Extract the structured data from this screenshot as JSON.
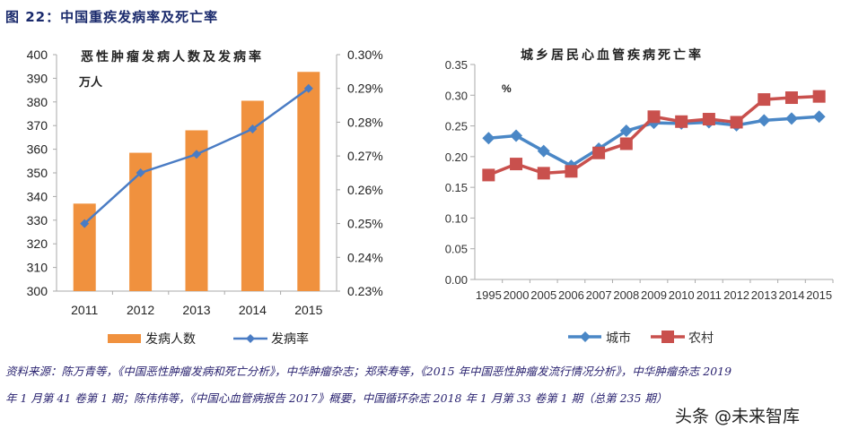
{
  "header": {
    "title": "图 22：中国重疾发病率及死亡率"
  },
  "chart_data": [
    {
      "type": "bar+line",
      "title": "恶性肿瘤发病人数及发病率",
      "unit": "万人",
      "categories": [
        "2011",
        "2012",
        "2013",
        "2014",
        "2015"
      ],
      "series": [
        {
          "name": "发病人数",
          "type": "bar",
          "axis": "left",
          "color": "#f0913e",
          "values": [
            337,
            358.5,
            368,
            380.5,
            392.7
          ]
        },
        {
          "name": "发病率",
          "type": "line",
          "axis": "right",
          "color": "#4a7cc4",
          "values": [
            0.25,
            0.265,
            0.2705,
            0.278,
            0.29
          ]
        }
      ],
      "ylim_left": [
        300,
        400
      ],
      "yticks_left": [
        "300",
        "310",
        "320",
        "330",
        "340",
        "350",
        "360",
        "370",
        "380",
        "390",
        "400"
      ],
      "ylim_right": [
        0.23,
        0.3
      ],
      "yticks_right": [
        "0.23%",
        "0.24%",
        "0.25%",
        "0.26%",
        "0.27%",
        "0.28%",
        "0.29%",
        "0.30%"
      ],
      "legend": "bottom",
      "grid": false
    },
    {
      "type": "line",
      "title": "城乡居民心血管疾病死亡率",
      "unit": "%",
      "categories": [
        "1995",
        "2000",
        "2005",
        "2006",
        "2007",
        "2008",
        "2009",
        "2010",
        "2011",
        "2012",
        "2013",
        "2014",
        "2015"
      ],
      "series": [
        {
          "name": "城市",
          "color": "#4a87c6",
          "marker": "diamond",
          "values": [
            0.23,
            0.234,
            0.209,
            0.185,
            0.213,
            0.242,
            0.255,
            0.254,
            0.256,
            0.251,
            0.259,
            0.262,
            0.265
          ]
        },
        {
          "name": "农村",
          "color": "#c9504d",
          "marker": "square",
          "values": [
            0.17,
            0.188,
            0.173,
            0.176,
            0.206,
            0.221,
            0.265,
            0.257,
            0.261,
            0.256,
            0.293,
            0.296,
            0.298
          ]
        }
      ],
      "ylim": [
        0,
        0.35
      ],
      "yticks": [
        "0.00",
        "0.05",
        "0.10",
        "0.15",
        "0.20",
        "0.25",
        "0.30",
        "0.35"
      ],
      "legend": "bottom",
      "grid": false
    }
  ],
  "footer": {
    "source": "资料来源：陈万青等，《中国恶性肿瘤发病和死亡分析》，中华肿瘤杂志；郑荣寿等，《2015 年中国恶性肿瘤发流行情况分析》，中华肿瘤杂志 2019 年 1 月第 41 卷第 1 期；陈伟伟等，《中国心血管病报告 2017》概要，中国循环杂志 2018 年 1 月第 33 卷第 1 期（总第 235 期）"
  },
  "watermark": "头条 @未来智库"
}
